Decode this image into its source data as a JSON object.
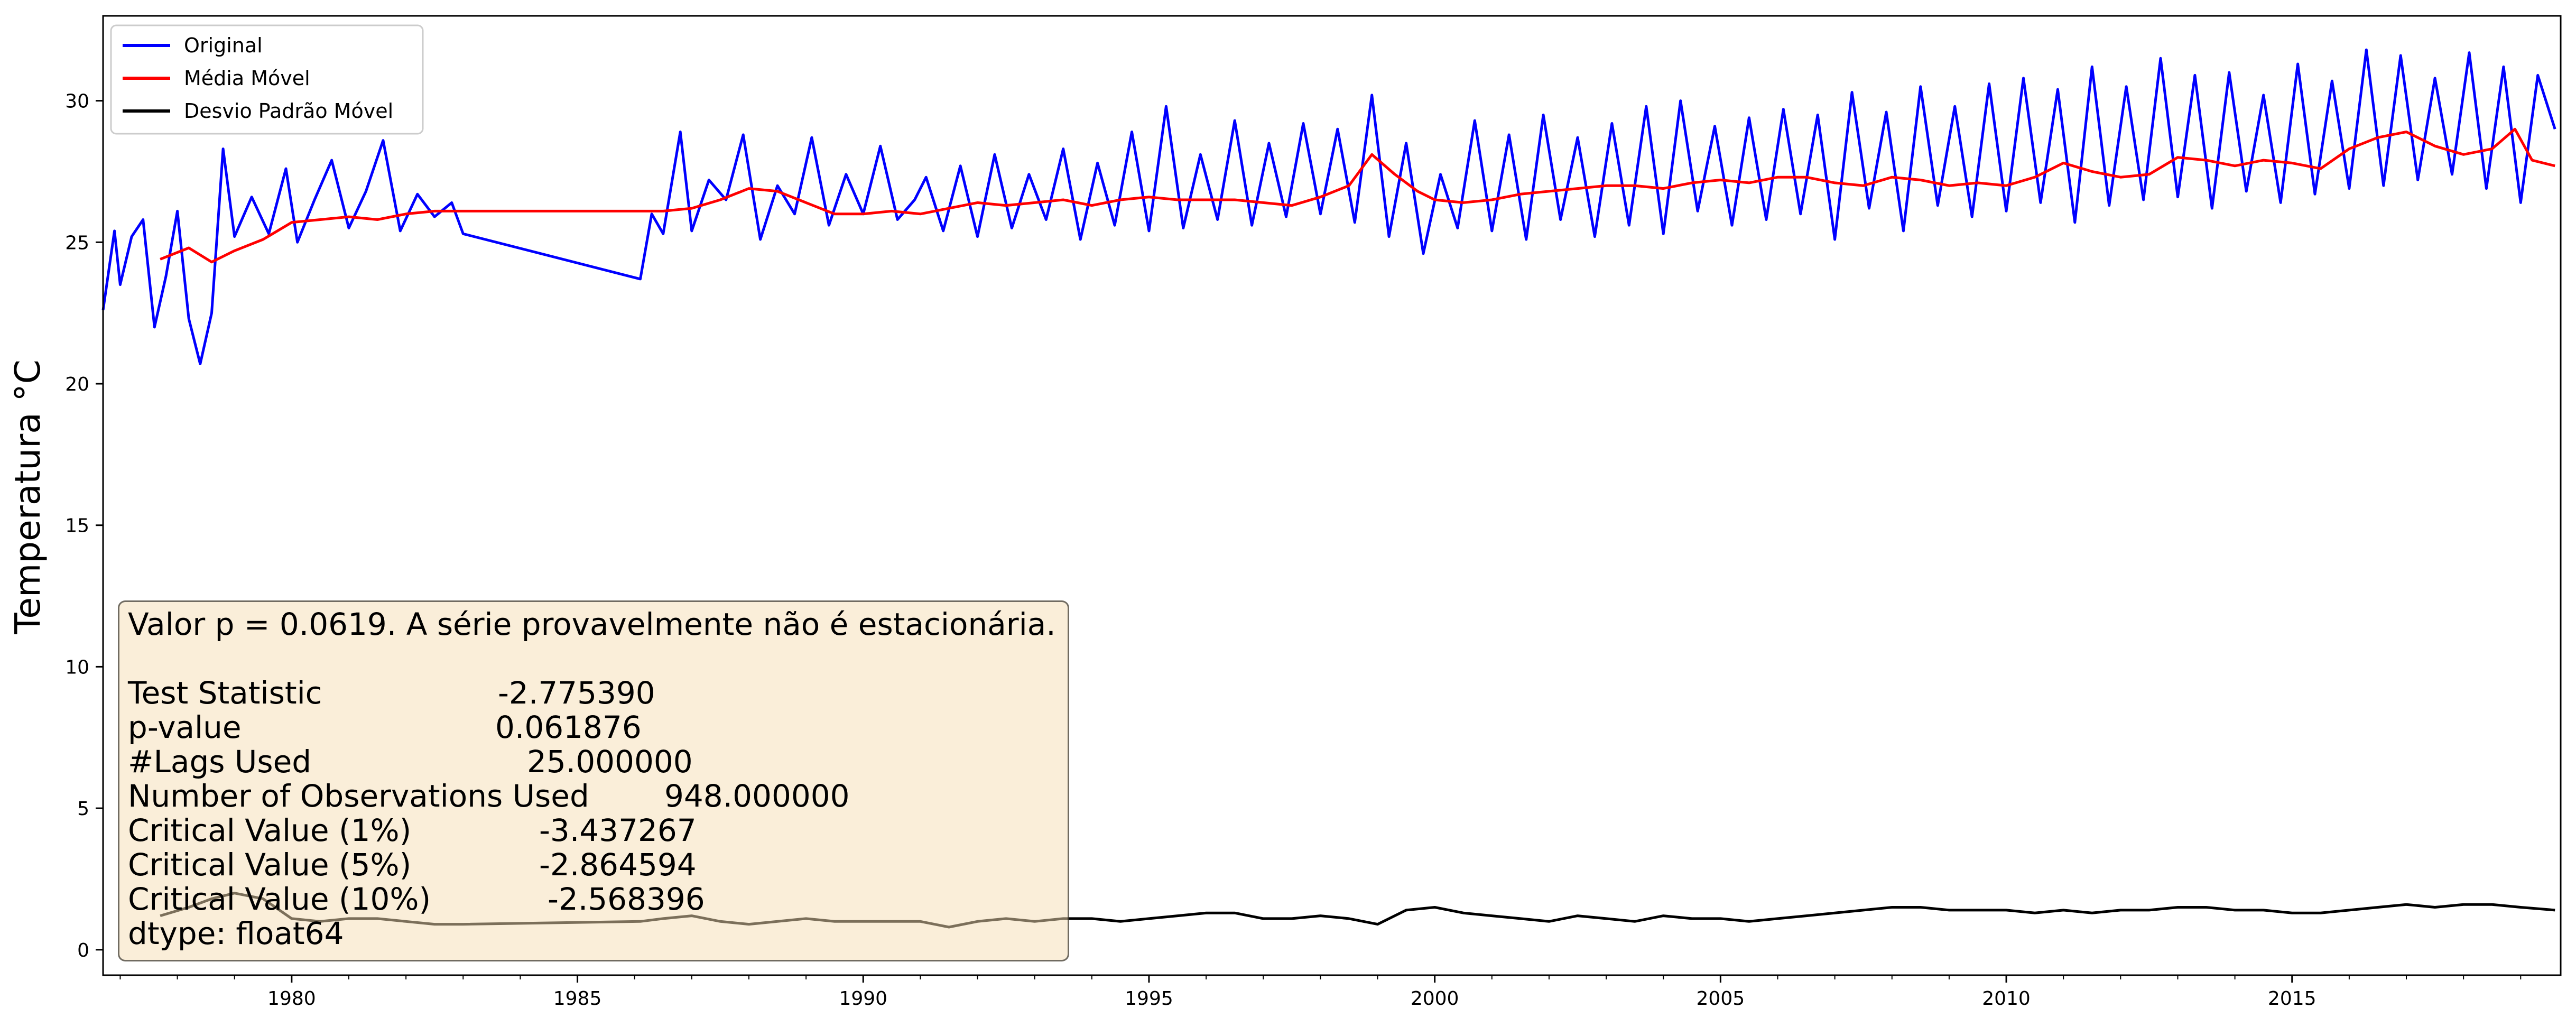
{
  "chart_data": {
    "type": "line",
    "title": "",
    "xlabel": "",
    "ylabel": "Temperatura °C",
    "xlim": [
      1976.7,
      2019.7
    ],
    "ylim": [
      -0.9,
      33.0
    ],
    "x_ticks": [
      1980,
      1985,
      1990,
      1995,
      2000,
      2005,
      2010,
      2015
    ],
    "y_ticks": [
      0,
      5,
      10,
      15,
      20,
      25,
      30
    ],
    "grid": false,
    "legend_position": "top-left",
    "series": [
      {
        "name": "Original",
        "color": "#0000ff",
        "x": [
          1976.7,
          1976.9,
          1977.0,
          1977.2,
          1977.4,
          1977.6,
          1977.8,
          1978.0,
          1978.2,
          1978.4,
          1978.6,
          1978.8,
          1979.0,
          1979.3,
          1979.6,
          1979.9,
          1980.1,
          1980.4,
          1980.7,
          1981.0,
          1981.3,
          1981.6,
          1981.9,
          1982.2,
          1982.5,
          1982.8,
          1983.0,
          1986.1,
          1986.3,
          1986.5,
          1986.8,
          1987.0,
          1987.3,
          1987.6,
          1987.9,
          1988.2,
          1988.5,
          1988.8,
          1989.1,
          1989.4,
          1989.7,
          1990.0,
          1990.3,
          1990.6,
          1990.9,
          1991.1,
          1991.4,
          1991.7,
          1992.0,
          1992.3,
          1992.6,
          1992.9,
          1993.2,
          1993.5,
          1993.8,
          1994.1,
          1994.4,
          1994.7,
          1995.0,
          1995.3,
          1995.6,
          1995.9,
          1996.2,
          1996.5,
          1996.8,
          1997.1,
          1997.4,
          1997.7,
          1998.0,
          1998.3,
          1998.6,
          1998.9,
          1999.2,
          1999.5,
          1999.8,
          2000.1,
          2000.4,
          2000.7,
          2001.0,
          2001.3,
          2001.6,
          2001.9,
          2002.2,
          2002.5,
          2002.8,
          2003.1,
          2003.4,
          2003.7,
          2004.0,
          2004.3,
          2004.6,
          2004.9,
          2005.2,
          2005.5,
          2005.8,
          2006.1,
          2006.4,
          2006.7,
          2007.0,
          2007.3,
          2007.6,
          2007.9,
          2008.2,
          2008.5,
          2008.8,
          2009.1,
          2009.4,
          2009.7,
          2010.0,
          2010.3,
          2010.6,
          2010.9,
          2011.2,
          2011.5,
          2011.8,
          2012.1,
          2012.4,
          2012.7,
          2013.0,
          2013.3,
          2013.6,
          2013.9,
          2014.2,
          2014.5,
          2014.8,
          2015.1,
          2015.4,
          2015.7,
          2016.0,
          2016.3,
          2016.6,
          2016.9,
          2017.2,
          2017.5,
          2017.8,
          2018.1,
          2018.4,
          2018.7,
          2019.0,
          2019.3,
          2019.6
        ],
        "values": [
          22.6,
          25.4,
          23.5,
          25.2,
          25.8,
          22.0,
          23.8,
          26.1,
          22.3,
          20.7,
          22.5,
          28.3,
          25.2,
          26.6,
          25.3,
          27.6,
          25.0,
          26.5,
          27.9,
          25.5,
          26.8,
          28.6,
          25.4,
          26.7,
          25.9,
          26.4,
          25.3,
          23.7,
          26.0,
          25.3,
          28.9,
          25.4,
          27.2,
          26.5,
          28.8,
          25.1,
          27.0,
          26.0,
          28.7,
          25.6,
          27.4,
          26.0,
          28.4,
          25.8,
          26.5,
          27.3,
          25.4,
          27.7,
          25.2,
          28.1,
          25.5,
          27.4,
          25.8,
          28.3,
          25.1,
          27.8,
          25.6,
          28.9,
          25.4,
          29.8,
          25.5,
          28.1,
          25.8,
          29.3,
          25.6,
          28.5,
          25.9,
          29.2,
          26.0,
          29.0,
          25.7,
          30.2,
          25.2,
          28.5,
          24.6,
          27.4,
          25.5,
          29.3,
          25.4,
          28.8,
          25.1,
          29.5,
          25.8,
          28.7,
          25.2,
          29.2,
          25.6,
          29.8,
          25.3,
          30.0,
          26.1,
          29.1,
          25.6,
          29.4,
          25.8,
          29.7,
          26.0,
          29.5,
          25.1,
          30.3,
          26.2,
          29.6,
          25.4,
          30.5,
          26.3,
          29.8,
          25.9,
          30.6,
          26.1,
          30.8,
          26.4,
          30.4,
          25.7,
          31.2,
          26.3,
          30.5,
          26.5,
          31.5,
          26.6,
          30.9,
          26.2,
          31.0,
          26.8,
          30.2,
          26.4,
          31.3,
          26.7,
          30.7,
          26.9,
          31.8,
          27.0,
          31.6,
          27.2,
          30.8,
          27.4,
          31.7,
          26.9,
          31.2,
          26.4,
          30.9,
          29.0
        ]
      },
      {
        "name": "Média Móvel",
        "color": "#ff0000",
        "x": [
          1977.7,
          1978.2,
          1978.6,
          1979.0,
          1979.5,
          1980.0,
          1980.5,
          1981.0,
          1981.5,
          1982.0,
          1982.5,
          1983.0,
          1986.1,
          1986.5,
          1987.0,
          1987.5,
          1988.0,
          1988.5,
          1989.0,
          1989.5,
          1990.0,
          1990.5,
          1991.0,
          1991.5,
          1992.0,
          1992.5,
          1993.0,
          1993.5,
          1994.0,
          1994.5,
          1995.0,
          1995.5,
          1996.0,
          1996.5,
          1997.0,
          1997.5,
          1998.0,
          1998.5,
          1998.9,
          1999.3,
          1999.7,
          2000.0,
          2000.5,
          2001.0,
          2001.5,
          2002.0,
          2002.5,
          2003.0,
          2003.5,
          2004.0,
          2004.5,
          2005.0,
          2005.5,
          2006.0,
          2006.5,
          2007.0,
          2007.5,
          2008.0,
          2008.5,
          2009.0,
          2009.5,
          2010.0,
          2010.5,
          2011.0,
          2011.5,
          2012.0,
          2012.5,
          2013.0,
          2013.5,
          2014.0,
          2014.5,
          2015.0,
          2015.5,
          2016.0,
          2016.5,
          2017.0,
          2017.5,
          2018.0,
          2018.5,
          2018.9,
          2019.2,
          2019.6
        ],
        "values": [
          24.4,
          24.8,
          24.3,
          24.7,
          25.1,
          25.7,
          25.8,
          25.9,
          25.8,
          26.0,
          26.1,
          26.1,
          26.1,
          26.1,
          26.2,
          26.5,
          26.9,
          26.8,
          26.4,
          26.0,
          26.0,
          26.1,
          26.0,
          26.2,
          26.4,
          26.3,
          26.4,
          26.5,
          26.3,
          26.5,
          26.6,
          26.5,
          26.5,
          26.5,
          26.4,
          26.3,
          26.6,
          27.0,
          28.1,
          27.4,
          26.8,
          26.5,
          26.4,
          26.5,
          26.7,
          26.8,
          26.9,
          27.0,
          27.0,
          26.9,
          27.1,
          27.2,
          27.1,
          27.3,
          27.3,
          27.1,
          27.0,
          27.3,
          27.2,
          27.0,
          27.1,
          27.0,
          27.3,
          27.8,
          27.5,
          27.3,
          27.4,
          28.0,
          27.9,
          27.7,
          27.9,
          27.8,
          27.6,
          28.3,
          28.7,
          28.9,
          28.4,
          28.1,
          28.3,
          29.0,
          27.9,
          27.7
        ]
      },
      {
        "name": "Desvio Padrão Móvel",
        "color": "#000000",
        "x": [
          1977.7,
          1978.2,
          1978.6,
          1979.0,
          1979.5,
          1980.0,
          1980.5,
          1981.0,
          1981.5,
          1982.0,
          1982.5,
          1983.0,
          1986.1,
          1986.5,
          1987.0,
          1987.5,
          1988.0,
          1988.5,
          1989.0,
          1989.5,
          1990.0,
          1990.5,
          1991.0,
          1991.5,
          1992.0,
          1992.5,
          1993.0,
          1993.5,
          1994.0,
          1994.5,
          1995.0,
          1995.5,
          1996.0,
          1996.5,
          1997.0,
          1997.5,
          1998.0,
          1998.5,
          1999.0,
          1999.5,
          2000.0,
          2000.5,
          2001.0,
          2001.5,
          2002.0,
          2002.5,
          2003.0,
          2003.5,
          2004.0,
          2004.5,
          2005.0,
          2005.5,
          2006.0,
          2006.5,
          2007.0,
          2007.5,
          2008.0,
          2008.5,
          2009.0,
          2009.5,
          2010.0,
          2010.5,
          2011.0,
          2011.5,
          2012.0,
          2012.5,
          2013.0,
          2013.5,
          2014.0,
          2014.5,
          2015.0,
          2015.5,
          2016.0,
          2016.5,
          2017.0,
          2017.5,
          2018.0,
          2018.5,
          2019.0,
          2019.6
        ],
        "values": [
          1.2,
          1.5,
          1.8,
          2.0,
          1.8,
          1.1,
          1.0,
          1.1,
          1.1,
          1.0,
          0.9,
          0.9,
          1.0,
          1.1,
          1.2,
          1.0,
          0.9,
          1.0,
          1.1,
          1.0,
          1.0,
          1.0,
          1.0,
          0.8,
          1.0,
          1.1,
          1.0,
          1.1,
          1.1,
          1.0,
          1.1,
          1.2,
          1.3,
          1.3,
          1.1,
          1.1,
          1.2,
          1.1,
          0.9,
          1.4,
          1.5,
          1.3,
          1.2,
          1.1,
          1.0,
          1.2,
          1.1,
          1.0,
          1.2,
          1.1,
          1.1,
          1.0,
          1.1,
          1.2,
          1.3,
          1.4,
          1.5,
          1.5,
          1.4,
          1.4,
          1.4,
          1.3,
          1.4,
          1.3,
          1.4,
          1.4,
          1.5,
          1.5,
          1.4,
          1.4,
          1.3,
          1.3,
          1.4,
          1.5,
          1.6,
          1.5,
          1.6,
          1.6,
          1.5,
          1.4
        ]
      }
    ],
    "annotation": {
      "summary": "Valor p = 0.0619. A série provavelmente não é estacionária.",
      "rows": [
        {
          "label": "Test Statistic",
          "value": "-2.775390"
        },
        {
          "label": "p-value",
          "value": "0.061876"
        },
        {
          "label": "#Lags Used",
          "value": "25.000000"
        },
        {
          "label": "Number of Observations Used",
          "value": "948.000000"
        },
        {
          "label": "Critical Value (1%)",
          "value": "-3.437267"
        },
        {
          "label": "Critical Value (5%)",
          "value": "-2.864594"
        },
        {
          "label": "Critical Value (10%)",
          "value": "-2.568396"
        }
      ],
      "footer": "dtype: float64"
    }
  }
}
